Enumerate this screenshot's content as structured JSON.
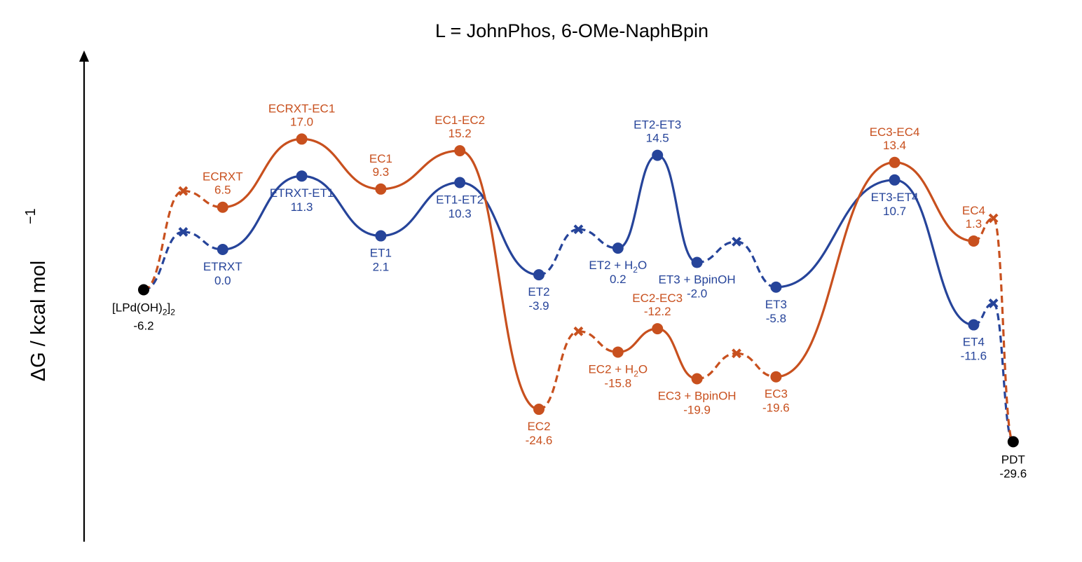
{
  "chart_data": {
    "type": "line",
    "title": "L = JohnPhos, 6-OMe-NaphBpin",
    "ylabel": "ΔG / kcal mol",
    "ylabel_sup": "−1",
    "ylim": [
      -38,
      25
    ],
    "x": [
      0,
      1,
      2,
      3,
      4,
      5,
      6,
      7,
      8,
      9,
      10,
      11,
      12,
      13,
      14,
      15,
      16,
      17,
      18,
      19,
      20,
      21,
      22
    ],
    "colors": {
      "ET": "#26449a",
      "EC": "#c8501e",
      "common": "#000000"
    },
    "common_points": [
      {
        "key": "start",
        "x": 0,
        "y": -6.2,
        "name": "[LPd(OH)₂]₂",
        "value": "-6.2"
      },
      {
        "key": "pdt",
        "x": 22,
        "y": -29.6,
        "name": "PDT",
        "value": "-29.6"
      }
    ],
    "series": [
      {
        "key": "ET",
        "points": [
          {
            "x": 0,
            "y": -6.2,
            "kind": "common"
          },
          {
            "x": 1,
            "y": 2.7,
            "kind": "cross"
          },
          {
            "x": 2,
            "y": 0.0,
            "kind": "dot",
            "name": "ETRXT",
            "value": "0.0",
            "pos": "below"
          },
          {
            "x": 4,
            "y": 11.3,
            "kind": "dot",
            "name": "ETRXT-ET1",
            "value": "11.3",
            "pos": "below"
          },
          {
            "x": 6,
            "y": 2.1,
            "kind": "dot",
            "name": "ET1",
            "value": "2.1",
            "pos": "below"
          },
          {
            "x": 8,
            "y": 10.3,
            "kind": "dot",
            "name": "ET1-ET2",
            "value": "10.3",
            "pos": "below"
          },
          {
            "x": 10,
            "y": -3.9,
            "kind": "dot",
            "name": "ET2",
            "value": "-3.9",
            "pos": "below"
          },
          {
            "x": 11,
            "y": 3.1,
            "kind": "cross"
          },
          {
            "x": 12,
            "y": 0.2,
            "kind": "dot",
            "name": "ET2 + H2O",
            "value": "0.2",
            "pos": "below",
            "sub": "2"
          },
          {
            "x": 13,
            "y": 14.5,
            "kind": "dot",
            "name": "ET2-ET3",
            "value": "14.5",
            "pos": "above"
          },
          {
            "x": 14,
            "y": -2.0,
            "kind": "dot",
            "name": "ET3 + BpinOH",
            "value": "-2.0",
            "pos": "below"
          },
          {
            "x": 15,
            "y": 1.2,
            "kind": "cross"
          },
          {
            "x": 16,
            "y": -5.8,
            "kind": "dot",
            "name": "ET3",
            "value": "-5.8",
            "pos": "below"
          },
          {
            "x": 19,
            "y": 10.7,
            "kind": "dot",
            "name": "ET3-ET4",
            "value": "10.7",
            "pos": "below"
          },
          {
            "x": 21,
            "y": -11.6,
            "kind": "dot",
            "name": "ET4",
            "value": "-11.6",
            "pos": "below"
          },
          {
            "x": 21.5,
            "y": -8.3,
            "kind": "cross"
          },
          {
            "x": 22,
            "y": -29.6,
            "kind": "common"
          }
        ]
      },
      {
        "key": "EC",
        "points": [
          {
            "x": 0,
            "y": -6.2,
            "kind": "common"
          },
          {
            "x": 1,
            "y": 9.0,
            "kind": "cross"
          },
          {
            "x": 2,
            "y": 6.5,
            "kind": "dot",
            "name": "ECRXT",
            "value": "6.5",
            "pos": "above"
          },
          {
            "x": 4,
            "y": 17.0,
            "kind": "dot",
            "name": "ECRXT-EC1",
            "value": "17.0",
            "pos": "above"
          },
          {
            "x": 6,
            "y": 9.3,
            "kind": "dot",
            "name": "EC1",
            "value": "9.3",
            "pos": "above"
          },
          {
            "x": 8,
            "y": 15.2,
            "kind": "dot",
            "name": "EC1-EC2",
            "value": "15.2",
            "pos": "above"
          },
          {
            "x": 10,
            "y": -24.6,
            "kind": "dot",
            "name": "EC2",
            "value": "-24.6",
            "pos": "below"
          },
          {
            "x": 11,
            "y": -12.6,
            "kind": "cross"
          },
          {
            "x": 12,
            "y": -15.8,
            "kind": "dot",
            "name": "EC2 + H2O",
            "value": "-15.8",
            "pos": "below",
            "sub": "2"
          },
          {
            "x": 13,
            "y": -12.2,
            "kind": "dot",
            "name": "EC2-EC3",
            "value": "-12.2",
            "pos": "above"
          },
          {
            "x": 14,
            "y": -19.9,
            "kind": "dot",
            "name": "EC3 + BpinOH",
            "value": "-19.9",
            "pos": "below"
          },
          {
            "x": 15,
            "y": -16.0,
            "kind": "cross"
          },
          {
            "x": 16,
            "y": -19.6,
            "kind": "dot",
            "name": "EC3",
            "value": "-19.6",
            "pos": "below"
          },
          {
            "x": 19,
            "y": 13.4,
            "kind": "dot",
            "name": "EC3-EC4",
            "value": "13.4",
            "pos": "above"
          },
          {
            "x": 21,
            "y": 1.3,
            "kind": "dot",
            "name": "EC4",
            "value": "1.3",
            "pos": "above"
          },
          {
            "x": 21.5,
            "y": 4.8,
            "kind": "cross"
          },
          {
            "x": 22,
            "y": -29.6,
            "kind": "common"
          }
        ]
      }
    ]
  }
}
